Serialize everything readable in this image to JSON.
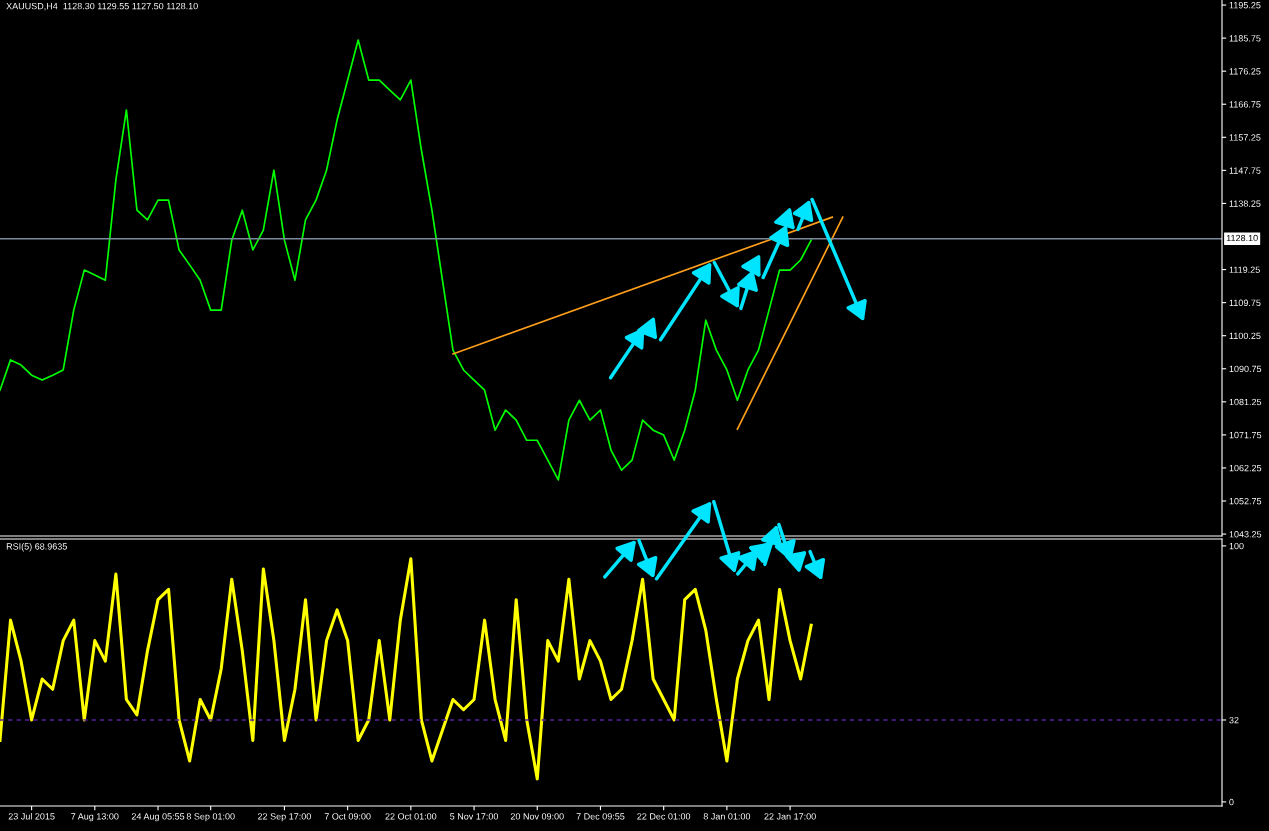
{
  "chart_data": [
    {
      "type": "line",
      "title": "XAUUSD,H4  1128.30 1129.55 1127.50 1128.10",
      "categories": [
        null,
        null,
        null,
        null,
        null,
        null,
        null,
        null,
        null,
        null,
        null,
        null,
        null,
        null,
        null,
        null,
        null,
        null,
        null,
        null,
        null,
        null,
        null,
        null,
        null,
        null,
        null,
        null,
        null,
        null,
        null,
        null,
        null,
        null,
        null,
        null,
        null,
        null,
        null,
        null,
        null,
        null,
        null,
        null,
        null,
        null,
        null,
        null,
        null,
        null,
        null,
        null,
        null,
        null,
        null,
        null,
        null,
        null,
        null,
        null,
        null,
        null,
        null,
        null,
        null,
        null,
        null,
        null,
        null,
        null,
        null,
        null,
        null,
        null,
        null,
        null,
        null,
        null,
        null,
        null,
        null,
        null,
        null,
        null,
        null,
        null,
        null,
        null,
        null,
        null,
        null,
        null,
        null,
        null,
        null,
        null,
        null,
        null,
        null,
        null,
        null,
        null,
        null,
        null,
        null,
        null,
        null,
        null,
        null,
        null,
        null,
        null,
        null,
        null,
        null,
        null,
        null
      ],
      "series": [
        {
          "color": "#00ff00",
          "values": [
            1084.6,
            1093.3,
            1091.8,
            1088.9,
            1087.5,
            1088.9,
            1090.4,
            1107.6,
            1119.1,
            1117.7,
            1116.2,
            1145.0,
            1165.1,
            1136.3,
            1133.5,
            1139.2,
            1139.2,
            1124.9,
            1120.6,
            1116.2,
            1107.6,
            1107.6,
            1127.7,
            1136.3,
            1124.9,
            1130.6,
            1147.8,
            1127.7,
            1116.2,
            1133.5,
            1139.2,
            1147.8,
            1162.2,
            1173.7,
            1185.2,
            1173.7,
            1173.7,
            1170.8,
            1168.0,
            1173.7,
            1153.6,
            1136.3,
            1116.2,
            1096.1,
            1090.4,
            1087.5,
            1084.6,
            1073.1,
            1078.9,
            1076.0,
            1070.2,
            1070.2,
            1064.5,
            1058.8,
            1076.0,
            1081.7,
            1076.0,
            1078.9,
            1067.4,
            1061.6,
            1064.5,
            1076.0,
            1073.1,
            1071.7,
            1064.5,
            1073.1,
            1084.6,
            1104.7,
            1096.1,
            1090.4,
            1081.7,
            1090.4,
            1096.1,
            1107.6,
            1119.1,
            1119.1,
            1122.0,
            1127.7,
            null,
            null,
            null,
            null,
            null,
            null,
            null,
            null,
            null,
            null,
            null,
            null,
            null,
            null,
            null,
            null,
            null,
            null,
            null,
            null,
            null,
            null,
            null,
            null,
            null,
            null,
            null,
            null,
            null,
            null,
            null,
            null,
            null,
            null,
            null,
            null,
            null,
            null,
            null
          ]
        },
        {
          "color": "#ff9f1a",
          "values": [
            null,
            null,
            null,
            null,
            null,
            null,
            null,
            null,
            null,
            null,
            null,
            null,
            null,
            null,
            null,
            null,
            null,
            null,
            null,
            null,
            null,
            null,
            null,
            null,
            null,
            null,
            null,
            null,
            null,
            null,
            null,
            null,
            null,
            null,
            null,
            null,
            null,
            null,
            null,
            null,
            null,
            null,
            null,
            1095.0,
            null,
            null,
            null,
            null,
            null,
            null,
            null,
            null,
            null,
            null,
            null,
            null,
            null,
            null,
            null,
            null,
            null,
            null,
            null,
            null,
            null,
            null,
            null,
            null,
            null,
            null,
            null,
            null,
            null,
            null,
            null,
            null,
            null,
            null,
            null,
            1134.3,
            null,
            null,
            null,
            null,
            null,
            null,
            null,
            null,
            null,
            null,
            null,
            null,
            null,
            null,
            null,
            null,
            null,
            null,
            null,
            null,
            null,
            null,
            null,
            null,
            null,
            null,
            null,
            null,
            null,
            null,
            null,
            null,
            null,
            null,
            null,
            null,
            null
          ]
        },
        {
          "color": "#ff9f1a",
          "values": [
            null,
            null,
            null,
            null,
            null,
            null,
            null,
            null,
            null,
            null,
            null,
            null,
            null,
            null,
            null,
            null,
            null,
            null,
            null,
            null,
            null,
            null,
            null,
            null,
            null,
            null,
            null,
            null,
            null,
            null,
            null,
            null,
            null,
            null,
            null,
            null,
            null,
            null,
            null,
            null,
            null,
            null,
            null,
            null,
            null,
            null,
            null,
            null,
            null,
            null,
            null,
            null,
            null,
            null,
            null,
            null,
            null,
            null,
            null,
            null,
            null,
            null,
            null,
            null,
            null,
            null,
            null,
            null,
            null,
            null,
            1073.4,
            null,
            null,
            null,
            null,
            null,
            null,
            null,
            null,
            null,
            1134.3,
            null,
            null,
            null,
            null,
            null,
            null,
            null,
            null,
            null,
            null,
            null,
            null,
            null,
            null,
            null,
            null,
            null,
            null,
            null,
            null,
            null,
            null,
            null,
            null,
            null,
            null,
            null,
            null,
            null,
            null,
            null,
            null,
            null,
            null,
            null,
            null
          ]
        }
      ],
      "ylim": [
        1042.7,
        1196.7
      ],
      "yticks": [
        1195.25,
        1185.75,
        1176.25,
        1166.75,
        1157.25,
        1147.75,
        1138.25,
        1119.25,
        1109.75,
        1100.25,
        1090.75,
        1081.25,
        1071.75,
        1062.25,
        1052.75,
        1043.25
      ],
      "ref_lines": [
        {
          "axis": "y",
          "value": 1128.1,
          "label": "1128.10",
          "color": "#7c8a9c",
          "line_style": "solid"
        }
      ],
      "tick_labels": "y"
    },
    {
      "type": "line",
      "title": "RSI(5) 68.9635",
      "categories": [
        null,
        null,
        null,
        "23 Jul 2015",
        null,
        null,
        null,
        null,
        null,
        "7 Aug 13:00",
        null,
        null,
        null,
        null,
        null,
        "24 Aug 05:55",
        null,
        null,
        null,
        null,
        "8 Sep 01:00",
        null,
        null,
        null,
        null,
        null,
        null,
        "22 Sep 17:00",
        null,
        null,
        null,
        null,
        null,
        "7 Oct 09:00",
        null,
        null,
        null,
        null,
        null,
        "22 Oct 01:00",
        null,
        null,
        null,
        null,
        null,
        "5 Nov 17:00",
        null,
        null,
        null,
        null,
        null,
        "20 Nov 09:00",
        null,
        null,
        null,
        null,
        null,
        "7 Dec 09:55",
        null,
        null,
        null,
        null,
        null,
        "22 Dec 01:00",
        null,
        null,
        null,
        null,
        null,
        "8 Jan 01:00",
        null,
        null,
        null,
        null,
        null,
        "22 Jan 17:00",
        null,
        null,
        null,
        null,
        null,
        null,
        null,
        null,
        null,
        null,
        null,
        null,
        null,
        null,
        null,
        null,
        null,
        null,
        null,
        null,
        null,
        null,
        null,
        null,
        null,
        null,
        null,
        null,
        null,
        null,
        null,
        null,
        null,
        null,
        null,
        null,
        null,
        null,
        null,
        null,
        null
      ],
      "series": [
        {
          "color": "#ffff00",
          "values": [
            24,
            71,
            55,
            32,
            48,
            44,
            63,
            71,
            32,
            63,
            55,
            89,
            40,
            34,
            59,
            79,
            83,
            32,
            16,
            40,
            32,
            52,
            87,
            59,
            24,
            91,
            63,
            24,
            44,
            79,
            32,
            63,
            75,
            63,
            24,
            32,
            63,
            32,
            71,
            95,
            32,
            16,
            28,
            40,
            36,
            40,
            71,
            40,
            24,
            79,
            32,
            9,
            63,
            55,
            87,
            48,
            63,
            55,
            40,
            44,
            63,
            87,
            48,
            40,
            32,
            79,
            83,
            67,
            40,
            16,
            48,
            63,
            71,
            40,
            83,
            63,
            48,
            69,
            null,
            null,
            null,
            null,
            null,
            null,
            null,
            null,
            null,
            null,
            null,
            null,
            null,
            null,
            null,
            null,
            null,
            null,
            null,
            null,
            null,
            null,
            null,
            null,
            null,
            null,
            null,
            null,
            null,
            null,
            null,
            null,
            null,
            null,
            null,
            null,
            null,
            null,
            null
          ]
        }
      ],
      "ylim": [
        -1.6,
        102.7
      ],
      "yticks": [
        100,
        32,
        0
      ],
      "ref_lines": [
        {
          "axis": "y",
          "value": 32,
          "color": "#5a1f9e",
          "line_style": "dashed"
        }
      ]
    }
  ]
}
